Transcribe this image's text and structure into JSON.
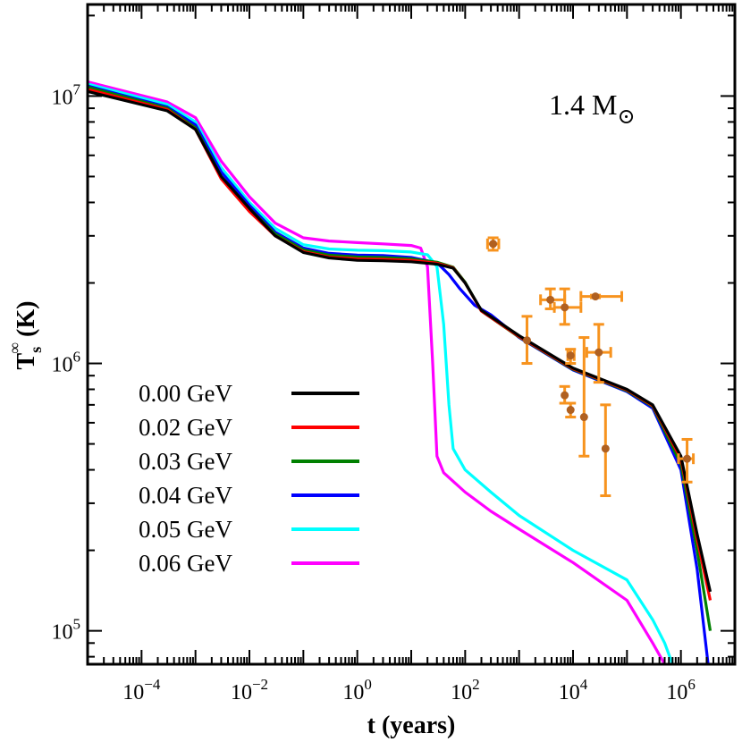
{
  "chart_data": {
    "type": "line",
    "title": "",
    "xlabel": "t (years)",
    "ylabel": "T_s^∞ (K)",
    "ylabel_main": "T",
    "ylabel_sub": "s",
    "ylabel_sup": "∞",
    "ylabel_unit": "(K)",
    "xscale": "log",
    "yscale": "log",
    "xlim": [
      1e-05,
      10000000
    ],
    "ylim": [
      75000,
      22000000
    ],
    "x_ticks": [
      {
        "base": "10",
        "exp": "−4",
        "value": 0.0001
      },
      {
        "base": "10",
        "exp": "−2",
        "value": 0.01
      },
      {
        "base": "10",
        "exp": "0",
        "value": 1
      },
      {
        "base": "10",
        "exp": "2",
        "value": 100
      },
      {
        "base": "10",
        "exp": "4",
        "value": 10000
      },
      {
        "base": "10",
        "exp": "6",
        "value": 1000000
      }
    ],
    "y_ticks": [
      {
        "base": "10",
        "exp": "5",
        "value": 100000
      },
      {
        "base": "10",
        "exp": "6",
        "value": 1000000
      },
      {
        "base": "10",
        "exp": "7",
        "value": 10000000
      }
    ],
    "annotation": {
      "text": "1.4 M",
      "symbol": "⊙"
    },
    "legend_position": "lower-left",
    "series": [
      {
        "name": "0.00 GeV",
        "color": "#000000",
        "x": [
          1e-05,
          0.0003,
          0.001,
          0.003,
          0.01,
          0.03,
          0.1,
          0.3,
          1,
          3,
          10,
          30,
          60,
          100,
          200,
          1000,
          10000,
          100000,
          300000,
          1000000,
          2000000,
          3500000
        ],
        "y": [
          10400000,
          8800000,
          7500000,
          5000000,
          3800000,
          3000000,
          2600000,
          2480000,
          2430000,
          2420000,
          2400000,
          2350000,
          2270000,
          2000000,
          1580000,
          1270000,
          960000,
          800000,
          700000,
          450000,
          230000,
          140000
        ]
      },
      {
        "name": "0.02 GeV",
        "color": "#ff0000",
        "x": [
          1e-05,
          0.0003,
          0.001,
          0.003,
          0.01,
          0.03,
          0.1,
          0.3,
          1,
          3,
          10,
          30,
          60,
          100,
          200,
          1000,
          10000,
          100000,
          300000,
          1000000,
          2000000,
          3500000
        ],
        "y": [
          10600000,
          8900000,
          7500000,
          4900000,
          3700000,
          3000000,
          2620000,
          2500000,
          2460000,
          2450000,
          2430000,
          2370000,
          2280000,
          2000000,
          1570000,
          1260000,
          955000,
          795000,
          695000,
          440000,
          220000,
          130000
        ]
      },
      {
        "name": "0.03 GeV",
        "color": "#008000",
        "x": [
          1e-05,
          0.0003,
          0.001,
          0.003,
          0.01,
          0.03,
          0.1,
          0.3,
          1,
          3,
          10,
          30,
          60,
          100,
          200,
          1000,
          10000,
          100000,
          300000,
          1000000,
          2000000,
          3500000
        ],
        "y": [
          10800000,
          9000000,
          7600000,
          5000000,
          3800000,
          3050000,
          2660000,
          2540000,
          2500000,
          2490000,
          2460000,
          2390000,
          2290000,
          2010000,
          1570000,
          1255000,
          950000,
          790000,
          690000,
          420000,
          200000,
          100000
        ]
      },
      {
        "name": "0.04 GeV",
        "color": "#0000ff",
        "x": [
          1e-05,
          0.0003,
          0.001,
          0.003,
          0.01,
          0.03,
          0.1,
          0.3,
          1,
          3,
          10,
          30,
          50,
          80,
          150,
          300,
          1000,
          10000,
          100000,
          300000,
          1000000,
          2000000,
          3200000
        ],
        "y": [
          10900000,
          9100000,
          7800000,
          5200000,
          3900000,
          3100000,
          2700000,
          2580000,
          2540000,
          2530000,
          2490000,
          2380000,
          2150000,
          1900000,
          1650000,
          1520000,
          1250000,
          945000,
          785000,
          680000,
          400000,
          170000,
          75000
        ]
      },
      {
        "name": "0.05 GeV",
        "color": "#00ffff",
        "x": [
          1e-05,
          0.0003,
          0.001,
          0.003,
          0.01,
          0.03,
          0.1,
          0.3,
          1,
          3,
          10,
          20,
          30,
          40,
          50,
          60,
          100,
          300,
          1000,
          10000,
          100000,
          300000,
          500000,
          700000
        ],
        "y": [
          11100000,
          9300000,
          8000000,
          5400000,
          4000000,
          3200000,
          2780000,
          2680000,
          2650000,
          2640000,
          2610000,
          2550000,
          2300000,
          1400000,
          700000,
          480000,
          400000,
          330000,
          270000,
          200000,
          155000,
          110000,
          90000,
          75000
        ]
      },
      {
        "name": "0.06 GeV",
        "color": "#ff00ff",
        "x": [
          1e-05,
          0.0003,
          0.001,
          0.003,
          0.01,
          0.03,
          0.1,
          0.3,
          1,
          3,
          10,
          15,
          20,
          25,
          30,
          40,
          100,
          300,
          1000,
          10000,
          100000,
          300000,
          500000
        ],
        "y": [
          11300000,
          9500000,
          8300000,
          5700000,
          4200000,
          3350000,
          2950000,
          2870000,
          2830000,
          2800000,
          2760000,
          2700000,
          2300000,
          1000000,
          450000,
          390000,
          330000,
          280000,
          240000,
          180000,
          130000,
          90000,
          75000
        ]
      }
    ],
    "observations": {
      "color": "#f7931e",
      "point_color": "#b06020",
      "points": [
        {
          "x": 330,
          "y": 2800000,
          "xerr": [
            260,
            420
          ],
          "yerr": [
            2650000,
            2950000
          ]
        },
        {
          "x": 1400,
          "y": 1220000,
          "xerr": [
            1400,
            1400
          ],
          "yerr": [
            1000000,
            1500000
          ]
        },
        {
          "x": 3800,
          "y": 1730000,
          "xerr": [
            2500,
            7000
          ],
          "yerr": [
            1600000,
            1900000
          ]
        },
        {
          "x": 7000,
          "y": 1620000,
          "xerr": [
            4500,
            14000
          ],
          "yerr": [
            1400000,
            1900000
          ]
        },
        {
          "x": 7000,
          "y": 760000,
          "xerr": [
            7000,
            7000
          ],
          "yerr": [
            710000,
            820000
          ]
        },
        {
          "x": 9000,
          "y": 1070000,
          "xerr": [
            8000,
            10500
          ],
          "yerr": [
            1000000,
            1130000
          ]
        },
        {
          "x": 9000,
          "y": 670000,
          "xerr": [
            9000,
            9000
          ],
          "yerr": [
            630000,
            710000
          ]
        },
        {
          "x": 16000,
          "y": 630000,
          "xerr": [
            16000,
            16000
          ],
          "yerr": [
            450000,
            1250000
          ]
        },
        {
          "x": 26000,
          "y": 1780000,
          "xerr": [
            14000,
            80000
          ],
          "yerr": [
            1760000,
            1800000
          ]
        },
        {
          "x": 30000,
          "y": 1100000,
          "xerr": [
            18000,
            50000
          ],
          "yerr": [
            850000,
            1400000
          ]
        },
        {
          "x": 40000,
          "y": 480000,
          "xerr": [
            40000,
            40000
          ],
          "yerr": [
            320000,
            700000
          ]
        },
        {
          "x": 1300000,
          "y": 440000,
          "xerr": [
            900000,
            1700000
          ],
          "yerr": [
            360000,
            520000
          ]
        }
      ]
    }
  }
}
